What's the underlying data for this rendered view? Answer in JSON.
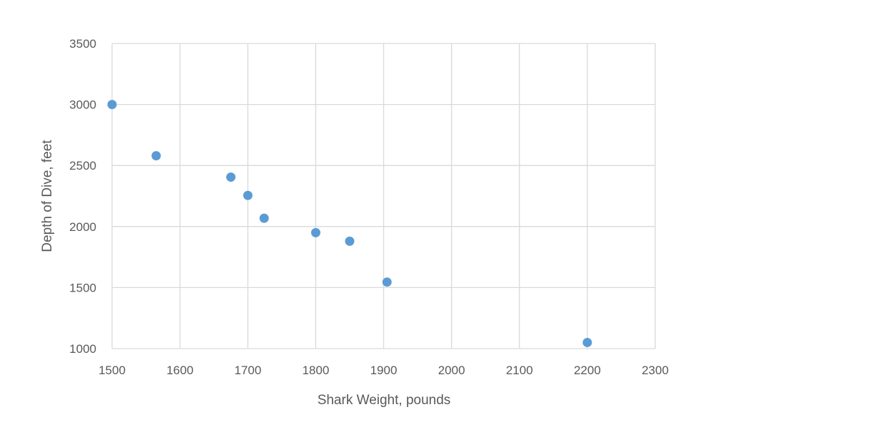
{
  "chart_data": {
    "type": "scatter",
    "title": "",
    "xlabel": "Shark Weight, pounds",
    "ylabel": "Depth of Dive, feet",
    "xlim": [
      1500,
      2300
    ],
    "ylim": [
      1000,
      3500
    ],
    "xticks": [
      1500,
      1600,
      1700,
      1800,
      1900,
      2000,
      2100,
      2200,
      2300
    ],
    "yticks": [
      1000,
      1500,
      2000,
      2500,
      3000,
      3500
    ],
    "grid": true,
    "legend": "none",
    "marker_color": "#5b9bd5",
    "gridline_color": "#d9d9d9",
    "series": [
      {
        "points": [
          {
            "x": 1500,
            "y": 3000
          },
          {
            "x": 1565,
            "y": 2580
          },
          {
            "x": 1675,
            "y": 2405
          },
          {
            "x": 1700,
            "y": 2255
          },
          {
            "x": 1724,
            "y": 2068
          },
          {
            "x": 1800,
            "y": 1950
          },
          {
            "x": 1850,
            "y": 1880
          },
          {
            "x": 1905,
            "y": 1545
          },
          {
            "x": 2200,
            "y": 1050
          }
        ]
      }
    ]
  }
}
